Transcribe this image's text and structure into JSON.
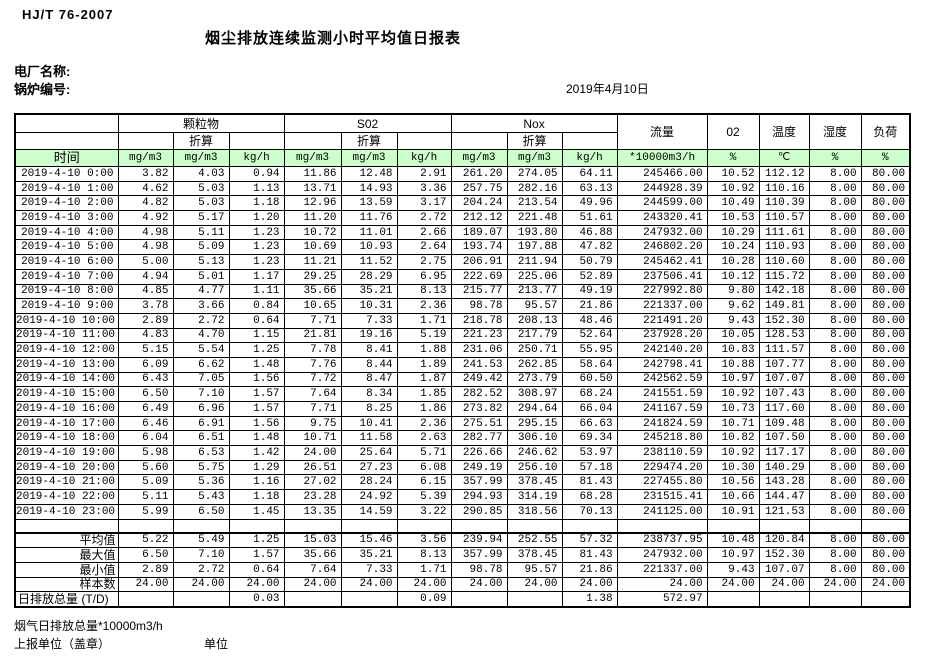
{
  "page": {
    "standard_label": "HJ/T  76-2007",
    "title": "烟尘排放连续监测小时平均值日报表",
    "plant_name_label": "电厂名称:",
    "boiler_no_label": "锅炉编号:",
    "date": "2019年4月10日",
    "footer_note": "烟气日排放总量*10000m3/h",
    "report_unit_label": "上报单位（盖章）",
    "unit_label": "单位"
  },
  "table": {
    "colors": {
      "header_green": "#ccffcc",
      "border": "#000000"
    },
    "time_label": "时间",
    "converted_label": "折算",
    "group_headers": {
      "pm": "颗粒物",
      "so2": "S02",
      "nox": "Nox",
      "flow": "流量",
      "o2": "02",
      "temp": "温度",
      "humidity": "湿度",
      "load": "负荷"
    },
    "unit_row": [
      "mg/m3",
      "mg/m3",
      "kg/h",
      "mg/m3",
      "mg/m3",
      "kg/h",
      "mg/m3",
      "mg/m3",
      "kg/h",
      "*10000m3/h",
      "%",
      "℃",
      "%",
      "%"
    ],
    "rows": [
      [
        "2019-4-10 0:00",
        "3.82",
        "4.03",
        "0.94",
        "11.86",
        "12.48",
        "2.91",
        "261.20",
        "274.05",
        "64.11",
        "245466.00",
        "10.52",
        "112.12",
        "8.00",
        "80.00"
      ],
      [
        "2019-4-10 1:00",
        "4.62",
        "5.03",
        "1.13",
        "13.71",
        "14.93",
        "3.36",
        "257.75",
        "282.16",
        "63.13",
        "244928.39",
        "10.92",
        "110.16",
        "8.00",
        "80.00"
      ],
      [
        "2019-4-10 2:00",
        "4.82",
        "5.03",
        "1.18",
        "12.96",
        "13.59",
        "3.17",
        "204.24",
        "213.54",
        "49.96",
        "244599.00",
        "10.49",
        "110.39",
        "8.00",
        "80.00"
      ],
      [
        "2019-4-10 3:00",
        "4.92",
        "5.17",
        "1.20",
        "11.20",
        "11.76",
        "2.72",
        "212.12",
        "221.48",
        "51.61",
        "243320.41",
        "10.53",
        "110.57",
        "8.00",
        "80.00"
      ],
      [
        "2019-4-10 4:00",
        "4.98",
        "5.11",
        "1.23",
        "10.72",
        "11.01",
        "2.66",
        "189.07",
        "193.80",
        "46.88",
        "247932.00",
        "10.29",
        "111.61",
        "8.00",
        "80.00"
      ],
      [
        "2019-4-10 5:00",
        "4.98",
        "5.09",
        "1.23",
        "10.69",
        "10.93",
        "2.64",
        "193.74",
        "197.88",
        "47.82",
        "246802.20",
        "10.24",
        "110.93",
        "8.00",
        "80.00"
      ],
      [
        "2019-4-10 6:00",
        "5.00",
        "5.13",
        "1.23",
        "11.21",
        "11.52",
        "2.75",
        "206.91",
        "211.94",
        "50.79",
        "245462.41",
        "10.28",
        "110.60",
        "8.00",
        "80.00"
      ],
      [
        "2019-4-10 7:00",
        "4.94",
        "5.01",
        "1.17",
        "29.25",
        "28.29",
        "6.95",
        "222.69",
        "225.06",
        "52.89",
        "237506.41",
        "10.12",
        "115.72",
        "8.00",
        "80.00"
      ],
      [
        "2019-4-10 8:00",
        "4.85",
        "4.77",
        "1.11",
        "35.66",
        "35.21",
        "8.13",
        "215.77",
        "213.77",
        "49.19",
        "227992.80",
        "9.80",
        "142.18",
        "8.00",
        "80.00"
      ],
      [
        "2019-4-10 9:00",
        "3.78",
        "3.66",
        "0.84",
        "10.65",
        "10.31",
        "2.36",
        "98.78",
        "95.57",
        "21.86",
        "221337.00",
        "9.62",
        "149.81",
        "8.00",
        "80.00"
      ],
      [
        "2019-4-10 10:00",
        "2.89",
        "2.72",
        "0.64",
        "7.71",
        "7.33",
        "1.71",
        "218.78",
        "208.13",
        "48.46",
        "221491.20",
        "9.43",
        "152.30",
        "8.00",
        "80.00"
      ],
      [
        "2019-4-10 11:00",
        "4.83",
        "4.70",
        "1.15",
        "21.81",
        "19.16",
        "5.19",
        "221.23",
        "217.79",
        "52.64",
        "237928.20",
        "10.05",
        "128.53",
        "8.00",
        "80.00"
      ],
      [
        "2019-4-10 12:00",
        "5.15",
        "5.54",
        "1.25",
        "7.78",
        "8.41",
        "1.88",
        "231.06",
        "250.71",
        "55.95",
        "242140.20",
        "10.83",
        "111.57",
        "8.00",
        "80.00"
      ],
      [
        "2019-4-10 13:00",
        "6.09",
        "6.62",
        "1.48",
        "7.76",
        "8.44",
        "1.89",
        "241.53",
        "262.85",
        "58.64",
        "242798.41",
        "10.88",
        "107.77",
        "8.00",
        "80.00"
      ],
      [
        "2019-4-10 14:00",
        "6.43",
        "7.05",
        "1.56",
        "7.72",
        "8.47",
        "1.87",
        "249.42",
        "273.79",
        "60.50",
        "242562.59",
        "10.97",
        "107.07",
        "8.00",
        "80.00"
      ],
      [
        "2019-4-10 15:00",
        "6.50",
        "7.10",
        "1.57",
        "7.64",
        "8.34",
        "1.85",
        "282.52",
        "308.97",
        "68.24",
        "241551.59",
        "10.92",
        "107.43",
        "8.00",
        "80.00"
      ],
      [
        "2019-4-10 16:00",
        "6.49",
        "6.96",
        "1.57",
        "7.71",
        "8.25",
        "1.86",
        "273.82",
        "294.64",
        "66.04",
        "241167.59",
        "10.73",
        "117.60",
        "8.00",
        "80.00"
      ],
      [
        "2019-4-10 17:00",
        "6.46",
        "6.91",
        "1.56",
        "9.75",
        "10.41",
        "2.36",
        "275.51",
        "295.15",
        "66.63",
        "241824.59",
        "10.71",
        "109.48",
        "8.00",
        "80.00"
      ],
      [
        "2019-4-10 18:00",
        "6.04",
        "6.51",
        "1.48",
        "10.71",
        "11.58",
        "2.63",
        "282.77",
        "306.10",
        "69.34",
        "245218.80",
        "10.82",
        "107.50",
        "8.00",
        "80.00"
      ],
      [
        "2019-4-10 19:00",
        "5.98",
        "6.53",
        "1.42",
        "24.00",
        "25.64",
        "5.71",
        "226.66",
        "246.62",
        "53.97",
        "238110.59",
        "10.92",
        "117.17",
        "8.00",
        "80.00"
      ],
      [
        "2019-4-10 20:00",
        "5.60",
        "5.75",
        "1.29",
        "26.51",
        "27.23",
        "6.08",
        "249.19",
        "256.10",
        "57.18",
        "229474.20",
        "10.30",
        "140.29",
        "8.00",
        "80.00"
      ],
      [
        "2019-4-10 21:00",
        "5.09",
        "5.36",
        "1.16",
        "27.02",
        "28.24",
        "6.15",
        "357.99",
        "378.45",
        "81.43",
        "227455.80",
        "10.56",
        "143.28",
        "8.00",
        "80.00"
      ],
      [
        "2019-4-10 22:00",
        "5.11",
        "5.43",
        "1.18",
        "23.28",
        "24.92",
        "5.39",
        "294.93",
        "314.19",
        "68.28",
        "231515.41",
        "10.66",
        "144.47",
        "8.00",
        "80.00"
      ],
      [
        "2019-4-10 23:00",
        "5.99",
        "6.50",
        "1.45",
        "13.35",
        "14.59",
        "3.22",
        "290.85",
        "318.56",
        "70.13",
        "241125.00",
        "10.91",
        "121.53",
        "8.00",
        "80.00"
      ]
    ],
    "summary_rows": [
      {
        "label": "平均值",
        "values": [
          "5.22",
          "5.49",
          "1.25",
          "15.03",
          "15.46",
          "3.56",
          "239.94",
          "252.55",
          "57.32",
          "238737.95",
          "10.48",
          "120.84",
          "8.00",
          "80.00"
        ]
      },
      {
        "label": "最大值",
        "values": [
          "6.50",
          "7.10",
          "1.57",
          "35.66",
          "35.21",
          "8.13",
          "357.99",
          "378.45",
          "81.43",
          "247932.00",
          "10.97",
          "152.30",
          "8.00",
          "80.00"
        ]
      },
      {
        "label": "最小值",
        "values": [
          "2.89",
          "2.72",
          "0.64",
          "7.64",
          "7.33",
          "1.71",
          "98.78",
          "95.57",
          "21.86",
          "221337.00",
          "9.43",
          "107.07",
          "8.00",
          "80.00"
        ]
      },
      {
        "label": "样本数",
        "values": [
          "24.00",
          "24.00",
          "24.00",
          "24.00",
          "24.00",
          "24.00",
          "24.00",
          "24.00",
          "24.00",
          "24.00",
          "24.00",
          "24.00",
          "24.00",
          "24.00"
        ]
      },
      {
        "label": "日排放总量 (T/D)",
        "values": [
          "",
          "",
          "0.03",
          "",
          "",
          "0.09",
          "",
          "",
          "1.38",
          "572.97",
          "",
          "",
          "",
          ""
        ]
      }
    ]
  }
}
